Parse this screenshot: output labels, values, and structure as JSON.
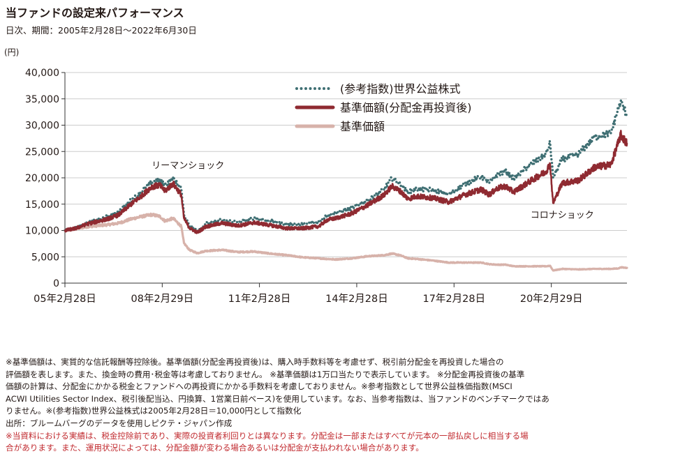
{
  "header": {
    "title": "当ファンドの設定来パフォーマンス",
    "subtitle": "日次、期間：2005年2月28日～2022年6月30日"
  },
  "colors": {
    "index": "#3f6f73",
    "nav_reinvested": "#8f2a31",
    "nav": "#d7b2aa",
    "grid": "#cccccc",
    "axis": "#333333",
    "note_red": "#c0282d"
  },
  "chart_data": {
    "type": "line",
    "x_range": [
      "2005-02-28",
      "2022-06-30"
    ],
    "x_ticks": [
      {
        "date": "2005-02-28",
        "label": "05年2月28日"
      },
      {
        "date": "2008-02-29",
        "label": "08年2月29日"
      },
      {
        "date": "2011-02-28",
        "label": "11年2月28日"
      },
      {
        "date": "2014-02-28",
        "label": "14年2月28日"
      },
      {
        "date": "2017-02-28",
        "label": "17年2月28日"
      },
      {
        "date": "2020-02-29",
        "label": "20年2月29日"
      }
    ],
    "ylabel": "(円)",
    "ylim": [
      0,
      40000
    ],
    "y_ticks": [
      {
        "value": 0,
        "label": "0"
      },
      {
        "value": 5000,
        "label": "5,000"
      },
      {
        "value": 10000,
        "label": "10,000"
      },
      {
        "value": 15000,
        "label": "15,000"
      },
      {
        "value": 20000,
        "label": "20,000"
      },
      {
        "value": 25000,
        "label": "25,000"
      },
      {
        "value": 30000,
        "label": "30,000"
      },
      {
        "value": 35000,
        "label": "35,000"
      },
      {
        "value": 40000,
        "label": "40,000"
      }
    ],
    "grid": "horizontal",
    "legend_position": "top-center",
    "annotations": [
      {
        "text": "リーマンショック",
        "date": "2008-12-15",
        "value": 21800
      },
      {
        "text": "コロナショック",
        "date": "2020-07-01",
        "value": 12400
      }
    ],
    "series": [
      {
        "name": "(参考指数)世界公益株式",
        "style": "dotted",
        "points": [
          [
            "2005-02-28",
            10000
          ],
          [
            "2005-06-30",
            10600
          ],
          [
            "2005-10-31",
            11400
          ],
          [
            "2006-02-28",
            12000
          ],
          [
            "2006-06-30",
            12700
          ],
          [
            "2006-10-31",
            13600
          ],
          [
            "2007-02-28",
            15500
          ],
          [
            "2007-06-30",
            17200
          ],
          [
            "2007-10-31",
            19200
          ],
          [
            "2008-01-31",
            19600
          ],
          [
            "2008-03-31",
            18600
          ],
          [
            "2008-06-30",
            20000
          ],
          [
            "2008-09-30",
            17800
          ],
          [
            "2008-10-31",
            13000
          ],
          [
            "2008-12-31",
            11000
          ],
          [
            "2009-03-31",
            10000
          ],
          [
            "2009-06-30",
            11300
          ],
          [
            "2009-12-31",
            12000
          ],
          [
            "2010-06-30",
            11600
          ],
          [
            "2010-12-31",
            12300
          ],
          [
            "2011-06-30",
            11800
          ],
          [
            "2011-12-31",
            11200
          ],
          [
            "2012-06-30",
            11200
          ],
          [
            "2012-12-31",
            11600
          ],
          [
            "2013-03-31",
            12900
          ],
          [
            "2013-06-30",
            13300
          ],
          [
            "2013-12-31",
            14200
          ],
          [
            "2014-06-30",
            15700
          ],
          [
            "2014-12-31",
            17800
          ],
          [
            "2015-03-31",
            19900
          ],
          [
            "2015-06-30",
            18900
          ],
          [
            "2015-09-30",
            17200
          ],
          [
            "2015-12-31",
            17900
          ],
          [
            "2016-06-30",
            17700
          ],
          [
            "2016-12-31",
            16800
          ],
          [
            "2017-06-30",
            18800
          ],
          [
            "2017-12-31",
            20300
          ],
          [
            "2018-03-31",
            19000
          ],
          [
            "2018-06-30",
            20600
          ],
          [
            "2018-09-30",
            21200
          ],
          [
            "2018-12-31",
            19800
          ],
          [
            "2019-06-30",
            22400
          ],
          [
            "2019-12-31",
            24500
          ],
          [
            "2020-02-15",
            26700
          ],
          [
            "2020-03-20",
            20000
          ],
          [
            "2020-06-30",
            23500
          ],
          [
            "2020-12-31",
            24500
          ],
          [
            "2021-06-30",
            27800
          ],
          [
            "2021-12-31",
            28500
          ],
          [
            "2022-03-31",
            33500
          ],
          [
            "2022-04-20",
            34500
          ],
          [
            "2022-06-30",
            32000
          ]
        ]
      },
      {
        "name": "基準価額(分配金再投資後)",
        "style": "solid",
        "points": [
          [
            "2005-02-28",
            10000
          ],
          [
            "2005-06-30",
            10400
          ],
          [
            "2005-10-31",
            11200
          ],
          [
            "2006-02-28",
            11700
          ],
          [
            "2006-06-30",
            12200
          ],
          [
            "2006-10-31",
            13000
          ],
          [
            "2007-02-28",
            14800
          ],
          [
            "2007-06-30",
            16400
          ],
          [
            "2007-10-31",
            18300
          ],
          [
            "2008-01-31",
            18600
          ],
          [
            "2008-03-31",
            17500
          ],
          [
            "2008-06-30",
            18900
          ],
          [
            "2008-09-30",
            16800
          ],
          [
            "2008-10-31",
            12300
          ],
          [
            "2008-12-31",
            10500
          ],
          [
            "2009-03-31",
            9600
          ],
          [
            "2009-06-30",
            10700
          ],
          [
            "2009-12-31",
            11400
          ],
          [
            "2010-06-30",
            10900
          ],
          [
            "2010-12-31",
            11500
          ],
          [
            "2011-06-30",
            11000
          ],
          [
            "2011-12-31",
            10400
          ],
          [
            "2012-06-30",
            10400
          ],
          [
            "2012-12-31",
            10800
          ],
          [
            "2013-03-31",
            12000
          ],
          [
            "2013-06-30",
            12300
          ],
          [
            "2013-12-31",
            13200
          ],
          [
            "2014-06-30",
            14800
          ],
          [
            "2014-12-31",
            16700
          ],
          [
            "2015-03-31",
            18400
          ],
          [
            "2015-06-30",
            17500
          ],
          [
            "2015-09-30",
            16000
          ],
          [
            "2015-12-31",
            16500
          ],
          [
            "2016-06-30",
            16200
          ],
          [
            "2016-12-31",
            15400
          ],
          [
            "2017-06-30",
            16800
          ],
          [
            "2017-12-31",
            17800
          ],
          [
            "2018-03-31",
            16800
          ],
          [
            "2018-06-30",
            18000
          ],
          [
            "2018-09-30",
            18400
          ],
          [
            "2018-12-31",
            17300
          ],
          [
            "2019-06-30",
            19300
          ],
          [
            "2019-12-31",
            21200
          ],
          [
            "2020-02-15",
            22600
          ],
          [
            "2020-03-20",
            15200
          ],
          [
            "2020-06-30",
            19000
          ],
          [
            "2020-12-31",
            19500
          ],
          [
            "2021-06-30",
            22000
          ],
          [
            "2021-12-31",
            22500
          ],
          [
            "2022-03-31",
            27000
          ],
          [
            "2022-04-20",
            28200
          ],
          [
            "2022-06-30",
            26500
          ]
        ]
      },
      {
        "name": "基準価額",
        "style": "solid-thick",
        "points": [
          [
            "2005-02-28",
            10000
          ],
          [
            "2005-06-30",
            10300
          ],
          [
            "2005-10-31",
            10700
          ],
          [
            "2006-02-28",
            10900
          ],
          [
            "2006-06-30",
            11100
          ],
          [
            "2006-10-31",
            11400
          ],
          [
            "2007-02-28",
            12100
          ],
          [
            "2007-06-30",
            12600
          ],
          [
            "2007-10-31",
            13000
          ],
          [
            "2008-01-31",
            12700
          ],
          [
            "2008-03-31",
            11800
          ],
          [
            "2008-06-30",
            12300
          ],
          [
            "2008-09-30",
            10800
          ],
          [
            "2008-10-31",
            7600
          ],
          [
            "2008-12-31",
            6300
          ],
          [
            "2009-03-31",
            5700
          ],
          [
            "2009-06-30",
            6100
          ],
          [
            "2009-12-31",
            6300
          ],
          [
            "2010-06-30",
            5900
          ],
          [
            "2010-12-31",
            6000
          ],
          [
            "2011-06-30",
            5600
          ],
          [
            "2011-12-31",
            5300
          ],
          [
            "2012-06-30",
            4900
          ],
          [
            "2012-12-31",
            4700
          ],
          [
            "2013-03-31",
            4600
          ],
          [
            "2013-06-30",
            4500
          ],
          [
            "2013-12-31",
            4700
          ],
          [
            "2014-06-30",
            5100
          ],
          [
            "2014-12-31",
            5300
          ],
          [
            "2015-03-31",
            5600
          ],
          [
            "2015-06-30",
            5300
          ],
          [
            "2015-09-30",
            4700
          ],
          [
            "2015-12-31",
            4600
          ],
          [
            "2016-06-30",
            4300
          ],
          [
            "2016-12-31",
            3900
          ],
          [
            "2017-06-30",
            3900
          ],
          [
            "2017-12-31",
            3900
          ],
          [
            "2018-03-31",
            3600
          ],
          [
            "2018-06-30",
            3500
          ],
          [
            "2018-09-30",
            3500
          ],
          [
            "2018-12-31",
            3200
          ],
          [
            "2019-06-30",
            3200
          ],
          [
            "2019-12-31",
            3200
          ],
          [
            "2020-02-15",
            3300
          ],
          [
            "2020-03-20",
            2400
          ],
          [
            "2020-06-30",
            2700
          ],
          [
            "2020-12-31",
            2600
          ],
          [
            "2021-06-30",
            2700
          ],
          [
            "2021-12-31",
            2700
          ],
          [
            "2022-03-31",
            2800
          ],
          [
            "2022-04-20",
            3000
          ],
          [
            "2022-06-30",
            2900
          ]
        ]
      }
    ]
  },
  "notes": {
    "lines": [
      "※基準価額は、実質的な信託報酬等控除後。基準価額(分配金再投資後)は、購入時手数料等を考慮せず、税引前分配金を再投資した場合の",
      "評価額を表します。また、換金時の費用･税金等は考慮しておりません。 ※基準価額は1万口当たりで表示しています。 ※分配金再投資後の基準",
      "価額の計算は、分配金にかかる税金とファンドへの再投資にかかる手数料を考慮しておりません。※参考指数として世界公益株価指数(MSCI",
      "ACWI Utilities Sector Index、税引後配当込、円換算、1営業日前ベース)を使用しています。なお、当参考指数は、当ファンドのベンチマークではあ",
      "りません。※(参考指数)世界公益株式は2005年2月28日＝10,000円として指数化",
      "出所：ブルームバーグのデータを使用しピクテ・ジャパン作成"
    ],
    "warning_lines": [
      "※当資料における実績は、税金控除前であり、実際の投資者利回りとは異なります。分配金は一部またはすべてが元本の一部払戻しに相当する場",
      "合があります。また、運用状況によっては、分配金額が変わる場合あるいは分配金が支払われない場合があります。"
    ]
  }
}
